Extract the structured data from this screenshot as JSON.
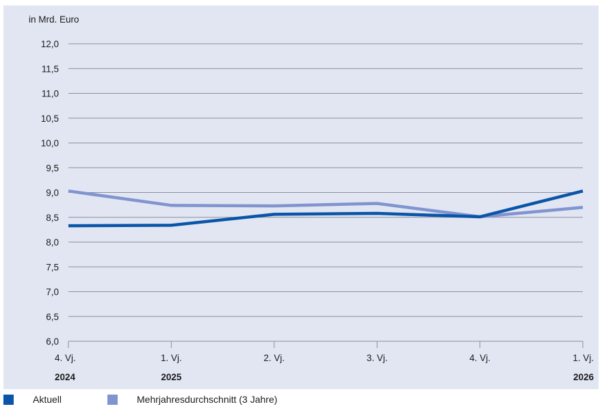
{
  "chart_data": {
    "type": "line",
    "unit_label": "in Mrd. Euro",
    "ylim": [
      6.0,
      12.0
    ],
    "yticks": [
      6.0,
      6.5,
      7.0,
      7.5,
      8.0,
      8.5,
      9.0,
      9.5,
      10.0,
      10.5,
      11.0,
      11.5,
      12.0
    ],
    "ytick_labels": [
      "6,0",
      "6,5",
      "7,0",
      "7,5",
      "8,0",
      "8,5",
      "9,0",
      "9,5",
      "10,0",
      "10,5",
      "11,0",
      "11,5",
      "12,0"
    ],
    "categories": [
      "4. Vj.",
      "1. Vj.",
      "2. Vj.",
      "3. Vj.",
      "4. Vj.",
      "1. Vj."
    ],
    "year_labels": [
      "2024",
      "2025",
      "",
      "",
      "",
      "2026"
    ],
    "grid": true,
    "legend_position": "bottom-left",
    "series": [
      {
        "name": "Mehrjahresdurchschnitt (3 Jahre)",
        "color": "#8094d0",
        "values": [
          9.03,
          8.74,
          8.73,
          8.78,
          8.51,
          8.7
        ]
      },
      {
        "name": "Aktuell",
        "color": "#0a55a8",
        "values": [
          8.33,
          8.34,
          8.56,
          8.58,
          8.51,
          9.03
        ]
      }
    ]
  },
  "legend": {
    "items": [
      {
        "label": "Aktuell",
        "color": "#0a55a8"
      },
      {
        "label": "Mehrjahresdurchschnitt (3 Jahre)",
        "color": "#8094d0"
      }
    ]
  }
}
